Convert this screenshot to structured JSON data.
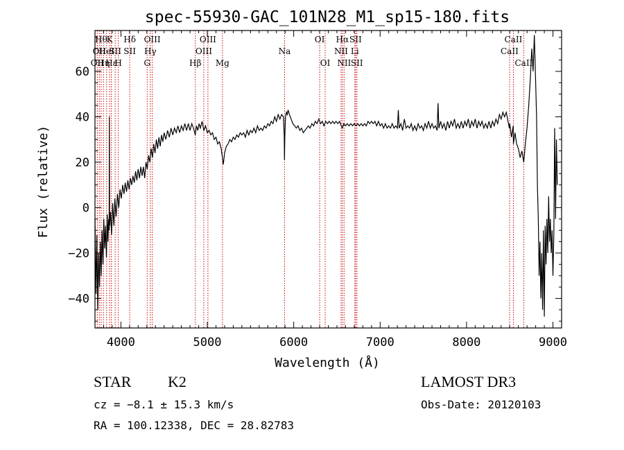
{
  "chart_data": {
    "type": "line",
    "title": "spec-55930-GAC_101N28_M1_sp15-180.fits",
    "xlabel": "Wavelength (Å)",
    "ylabel": "Flux (relative)",
    "xlim": [
      3700,
      9100
    ],
    "ylim": [
      -53,
      78
    ],
    "x_ticks": [
      "4000",
      "5000",
      "6000",
      "7000",
      "8000",
      "9000"
    ],
    "y_ticks": [
      "-40",
      "-20",
      "0",
      "20",
      "40",
      "60"
    ],
    "x_tick_values": [
      4000,
      5000,
      6000,
      7000,
      8000,
      9000
    ],
    "y_tick_values": [
      -40,
      -20,
      0,
      20,
      40,
      60
    ],
    "line_color": "#000000",
    "marker_color": "#cc0000",
    "spectrum": [
      [
        3700,
        -5
      ],
      [
        3712,
        -38
      ],
      [
        3722,
        -12
      ],
      [
        3732,
        -45
      ],
      [
        3742,
        -20
      ],
      [
        3752,
        -35
      ],
      [
        3762,
        -15
      ],
      [
        3772,
        -30
      ],
      [
        3782,
        -10
      ],
      [
        3792,
        -25
      ],
      [
        3802,
        -5
      ],
      [
        3812,
        -18
      ],
      [
        3822,
        -8
      ],
      [
        3832,
        -22
      ],
      [
        3842,
        -3
      ],
      [
        3850,
        -15
      ],
      [
        3858,
        -5
      ],
      [
        3864,
        -10
      ],
      [
        3866,
        40
      ],
      [
        3869,
        -8
      ],
      [
        3880,
        -2
      ],
      [
        3892,
        -12
      ],
      [
        3905,
        2
      ],
      [
        3918,
        -8
      ],
      [
        3930,
        4
      ],
      [
        3945,
        -4
      ],
      [
        3960,
        6
      ],
      [
        3975,
        0
      ],
      [
        3990,
        8
      ],
      [
        4005,
        4
      ],
      [
        4020,
        10
      ],
      [
        4035,
        6
      ],
      [
        4050,
        11
      ],
      [
        4065,
        7
      ],
      [
        4080,
        12
      ],
      [
        4095,
        8
      ],
      [
        4110,
        13
      ],
      [
        4125,
        10
      ],
      [
        4140,
        14
      ],
      [
        4155,
        11
      ],
      [
        4170,
        16
      ],
      [
        4185,
        12
      ],
      [
        4200,
        17
      ],
      [
        4215,
        13
      ],
      [
        4230,
        18
      ],
      [
        4245,
        14
      ],
      [
        4260,
        18
      ],
      [
        4275,
        13
      ],
      [
        4290,
        20
      ],
      [
        4305,
        17
      ],
      [
        4320,
        23
      ],
      [
        4335,
        20
      ],
      [
        4350,
        26
      ],
      [
        4365,
        22
      ],
      [
        4380,
        28
      ],
      [
        4395,
        24
      ],
      [
        4410,
        30
      ],
      [
        4425,
        26
      ],
      [
        4440,
        31
      ],
      [
        4455,
        27
      ],
      [
        4470,
        32
      ],
      [
        4485,
        29
      ],
      [
        4500,
        33
      ],
      [
        4520,
        30
      ],
      [
        4540,
        34
      ],
      [
        4560,
        31
      ],
      [
        4580,
        35
      ],
      [
        4600,
        32
      ],
      [
        4620,
        35
      ],
      [
        4640,
        33
      ],
      [
        4660,
        36
      ],
      [
        4680,
        33
      ],
      [
        4700,
        36
      ],
      [
        4720,
        34
      ],
      [
        4740,
        37
      ],
      [
        4760,
        34
      ],
      [
        4780,
        37
      ],
      [
        4800,
        34
      ],
      [
        4820,
        37
      ],
      [
        4840,
        35
      ],
      [
        4860,
        32
      ],
      [
        4875,
        36
      ],
      [
        4890,
        34
      ],
      [
        4905,
        37
      ],
      [
        4920,
        35
      ],
      [
        4940,
        38
      ],
      [
        4960,
        34
      ],
      [
        4980,
        36
      ],
      [
        5000,
        33
      ],
      [
        5020,
        34
      ],
      [
        5040,
        32
      ],
      [
        5060,
        33
      ],
      [
        5080,
        30
      ],
      [
        5100,
        31
      ],
      [
        5120,
        28
      ],
      [
        5140,
        29
      ],
      [
        5160,
        26
      ],
      [
        5175,
        22
      ],
      [
        5185,
        19
      ],
      [
        5200,
        24
      ],
      [
        5220,
        27
      ],
      [
        5240,
        28
      ],
      [
        5260,
        30
      ],
      [
        5280,
        29
      ],
      [
        5300,
        31
      ],
      [
        5320,
        30
      ],
      [
        5340,
        32
      ],
      [
        5360,
        31
      ],
      [
        5380,
        33
      ],
      [
        5400,
        32
      ],
      [
        5420,
        33
      ],
      [
        5440,
        31
      ],
      [
        5460,
        34
      ],
      [
        5480,
        32
      ],
      [
        5500,
        34
      ],
      [
        5520,
        33
      ],
      [
        5540,
        35
      ],
      [
        5560,
        33
      ],
      [
        5580,
        36
      ],
      [
        5600,
        34
      ],
      [
        5620,
        35
      ],
      [
        5640,
        34
      ],
      [
        5660,
        36
      ],
      [
        5680,
        35
      ],
      [
        5700,
        37
      ],
      [
        5720,
        36
      ],
      [
        5740,
        38
      ],
      [
        5760,
        37
      ],
      [
        5780,
        40
      ],
      [
        5800,
        38
      ],
      [
        5820,
        41
      ],
      [
        5840,
        39
      ],
      [
        5860,
        41
      ],
      [
        5880,
        40
      ],
      [
        5890,
        32
      ],
      [
        5893,
        21
      ],
      [
        5897,
        31
      ],
      [
        5905,
        40
      ],
      [
        5915,
        42
      ],
      [
        5925,
        41
      ],
      [
        5935,
        43
      ],
      [
        5950,
        41
      ],
      [
        5970,
        39
      ],
      [
        5990,
        37
      ],
      [
        6010,
        36
      ],
      [
        6030,
        35
      ],
      [
        6050,
        36
      ],
      [
        6070,
        34
      ],
      [
        6090,
        35
      ],
      [
        6110,
        33
      ],
      [
        6130,
        34
      ],
      [
        6150,
        35
      ],
      [
        6170,
        36
      ],
      [
        6190,
        35
      ],
      [
        6210,
        37
      ],
      [
        6230,
        36
      ],
      [
        6250,
        38
      ],
      [
        6270,
        37
      ],
      [
        6290,
        39
      ],
      [
        6310,
        37
      ],
      [
        6330,
        38
      ],
      [
        6350,
        36
      ],
      [
        6370,
        38
      ],
      [
        6390,
        37
      ],
      [
        6410,
        38
      ],
      [
        6430,
        37
      ],
      [
        6450,
        38
      ],
      [
        6470,
        37
      ],
      [
        6490,
        38
      ],
      [
        6510,
        37
      ],
      [
        6530,
        38
      ],
      [
        6550,
        36
      ],
      [
        6563,
        35
      ],
      [
        6580,
        37
      ],
      [
        6600,
        36
      ],
      [
        6620,
        37
      ],
      [
        6640,
        36
      ],
      [
        6660,
        37
      ],
      [
        6680,
        36
      ],
      [
        6700,
        37
      ],
      [
        6720,
        36
      ],
      [
        6740,
        37
      ],
      [
        6760,
        36
      ],
      [
        6780,
        37
      ],
      [
        6800,
        36
      ],
      [
        6820,
        37
      ],
      [
        6840,
        36
      ],
      [
        6860,
        38
      ],
      [
        6880,
        37
      ],
      [
        6900,
        38
      ],
      [
        6920,
        37
      ],
      [
        6940,
        38
      ],
      [
        6960,
        36
      ],
      [
        6980,
        38
      ],
      [
        7000,
        36
      ],
      [
        7020,
        37
      ],
      [
        7040,
        35
      ],
      [
        7060,
        37
      ],
      [
        7080,
        35
      ],
      [
        7100,
        36
      ],
      [
        7120,
        35
      ],
      [
        7140,
        37
      ],
      [
        7160,
        35
      ],
      [
        7180,
        36
      ],
      [
        7200,
        35
      ],
      [
        7210,
        43
      ],
      [
        7220,
        35
      ],
      [
        7240,
        37
      ],
      [
        7260,
        34
      ],
      [
        7280,
        39
      ],
      [
        7300,
        35
      ],
      [
        7320,
        36
      ],
      [
        7340,
        35
      ],
      [
        7360,
        37
      ],
      [
        7380,
        34
      ],
      [
        7400,
        36
      ],
      [
        7420,
        34
      ],
      [
        7440,
        37
      ],
      [
        7460,
        35
      ],
      [
        7480,
        36
      ],
      [
        7500,
        34
      ],
      [
        7520,
        37
      ],
      [
        7540,
        35
      ],
      [
        7560,
        38
      ],
      [
        7580,
        35
      ],
      [
        7600,
        37
      ],
      [
        7620,
        35
      ],
      [
        7640,
        36
      ],
      [
        7660,
        34
      ],
      [
        7670,
        46
      ],
      [
        7680,
        35
      ],
      [
        7700,
        38
      ],
      [
        7720,
        35
      ],
      [
        7740,
        37
      ],
      [
        7760,
        34
      ],
      [
        7780,
        38
      ],
      [
        7800,
        35
      ],
      [
        7820,
        38
      ],
      [
        7840,
        36
      ],
      [
        7860,
        39
      ],
      [
        7880,
        35
      ],
      [
        7900,
        37
      ],
      [
        7920,
        35
      ],
      [
        7940,
        38
      ],
      [
        7960,
        35
      ],
      [
        7980,
        38
      ],
      [
        8000,
        36
      ],
      [
        8020,
        39
      ],
      [
        8040,
        35
      ],
      [
        8060,
        38
      ],
      [
        8080,
        36
      ],
      [
        8100,
        39
      ],
      [
        8120,
        35
      ],
      [
        8140,
        38
      ],
      [
        8160,
        36
      ],
      [
        8180,
        38
      ],
      [
        8200,
        35
      ],
      [
        8220,
        37
      ],
      [
        8240,
        35
      ],
      [
        8260,
        38
      ],
      [
        8280,
        35
      ],
      [
        8300,
        38
      ],
      [
        8320,
        36
      ],
      [
        8340,
        39
      ],
      [
        8360,
        37
      ],
      [
        8380,
        41
      ],
      [
        8400,
        39
      ],
      [
        8420,
        42
      ],
      [
        8440,
        40
      ],
      [
        8460,
        42
      ],
      [
        8480,
        38
      ],
      [
        8495,
        35
      ],
      [
        8500,
        37
      ],
      [
        8520,
        31
      ],
      [
        8540,
        36
      ],
      [
        8542,
        28
      ],
      [
        8560,
        33
      ],
      [
        8580,
        28
      ],
      [
        8600,
        26
      ],
      [
        8620,
        22
      ],
      [
        8640,
        25
      ],
      [
        8662,
        20
      ],
      [
        8680,
        28
      ],
      [
        8700,
        35
      ],
      [
        8720,
        45
      ],
      [
        8740,
        58
      ],
      [
        8755,
        70
      ],
      [
        8770,
        60
      ],
      [
        8785,
        76
      ],
      [
        8800,
        55
      ],
      [
        8810,
        40
      ],
      [
        8820,
        10
      ],
      [
        8830,
        -5
      ],
      [
        8840,
        -30
      ],
      [
        8850,
        -15
      ],
      [
        8860,
        -40
      ],
      [
        8870,
        -20
      ],
      [
        8880,
        -45
      ],
      [
        8890,
        -10
      ],
      [
        8900,
        -48
      ],
      [
        8910,
        -8
      ],
      [
        8920,
        -25
      ],
      [
        8930,
        -5
      ],
      [
        8940,
        -20
      ],
      [
        8950,
        5
      ],
      [
        8960,
        -15
      ],
      [
        8970,
        -5
      ],
      [
        8980,
        -20
      ],
      [
        8990,
        -10
      ],
      [
        9000,
        -30
      ],
      [
        9010,
        -12
      ],
      [
        9020,
        35
      ],
      [
        9030,
        -5
      ],
      [
        9040,
        30
      ],
      [
        9050,
        10
      ]
    ],
    "lines": [
      {
        "wl": 3727,
        "labels": [
          "OII"
        ],
        "rows": [
          2
        ]
      },
      {
        "wl": 3750,
        "labels": [
          "OII"
        ],
        "rows": [
          1
        ]
      },
      {
        "wl": 3771,
        "labels": [
          "Hθ"
        ],
        "rows": [
          0
        ]
      },
      {
        "wl": 3798,
        "labels": [
          "Hη"
        ],
        "rows": [
          2
        ]
      },
      {
        "wl": 3835,
        "labels": [
          "HeI"
        ],
        "rows": [
          1
        ]
      },
      {
        "wl": 3869,
        "labels": [
          "K"
        ],
        "rows": [
          0
        ]
      },
      {
        "wl": 3889,
        "labels": [
          "Hε"
        ],
        "rows": [
          2
        ]
      },
      {
        "wl": 3934,
        "labels": [
          "SII"
        ],
        "rows": [
          1
        ]
      },
      {
        "wl": 3970,
        "labels": [
          "H"
        ],
        "rows": [
          2
        ]
      },
      {
        "wl": 4102,
        "labels": [
          "Hδ",
          "SII"
        ],
        "rows": [
          0,
          1
        ]
      },
      {
        "wl": 4304,
        "labels": [
          "G"
        ],
        "rows": [
          2
        ]
      },
      {
        "wl": 4340,
        "labels": [
          "Hγ"
        ],
        "rows": [
          1
        ]
      },
      {
        "wl": 4363,
        "labels": [
          "OIII"
        ],
        "rows": [
          0
        ]
      },
      {
        "wl": 4861,
        "labels": [
          "Hβ"
        ],
        "rows": [
          2
        ]
      },
      {
        "wl": 4959,
        "labels": [
          "OIII"
        ],
        "rows": [
          1
        ]
      },
      {
        "wl": 5007,
        "labels": [
          "OIII"
        ],
        "rows": [
          0
        ]
      },
      {
        "wl": 5175,
        "labels": [
          "Mg"
        ],
        "rows": [
          2
        ]
      },
      {
        "wl": 5894,
        "labels": [
          "Na"
        ],
        "rows": [
          1
        ]
      },
      {
        "wl": 6300,
        "labels": [
          "OI"
        ],
        "rows": [
          0
        ]
      },
      {
        "wl": 6364,
        "labels": [
          "OI"
        ],
        "rows": [
          2
        ]
      },
      {
        "wl": 6548,
        "labels": [
          "NII"
        ],
        "rows": [
          1
        ]
      },
      {
        "wl": 6563,
        "labels": [
          "Hα"
        ],
        "rows": [
          0
        ]
      },
      {
        "wl": 6583,
        "labels": [
          "NII"
        ],
        "rows": [
          2
        ]
      },
      {
        "wl": 6707,
        "labels": [
          "Li"
        ],
        "rows": [
          1
        ]
      },
      {
        "wl": 6716,
        "labels": [
          "SII"
        ],
        "rows": [
          0
        ]
      },
      {
        "wl": 6731,
        "labels": [
          "SII"
        ],
        "rows": [
          2
        ]
      },
      {
        "wl": 8498,
        "labels": [
          "CaII"
        ],
        "rows": [
          1
        ]
      },
      {
        "wl": 8542,
        "labels": [
          "CaII"
        ],
        "rows": [
          0
        ]
      },
      {
        "wl": 8662,
        "labels": [
          "CaII"
        ],
        "rows": [
          2
        ]
      }
    ]
  },
  "info": {
    "class": "STAR",
    "subclass": "K2",
    "survey": "LAMOST DR3",
    "cz": "cz = −8.1 ± 15.3 km/s",
    "obs_date": "Obs-Date: 20120103",
    "radec": "RA = 100.12338, DEC =  28.82783"
  }
}
